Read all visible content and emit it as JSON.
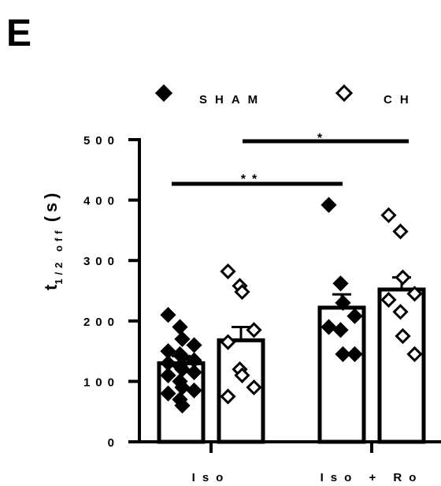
{
  "panel_label": "E",
  "legend": [
    {
      "name": "SHAM",
      "marker": "filled-diamond"
    },
    {
      "name": "CH",
      "marker": "open-diamond"
    }
  ],
  "ylabel": {
    "main": "t",
    "sub": "1/2 off",
    "unit": "(s)"
  },
  "significance": [
    {
      "label": "**",
      "groups": [
        "Iso SHAM",
        "Iso + Ro SHAM"
      ]
    },
    {
      "label": "*",
      "groups": [
        "Iso CH",
        "Iso + Ro CH"
      ]
    }
  ],
  "colors": {
    "ink": "#000000",
    "background": "#ffffff",
    "bar_fill": "#ffffff"
  },
  "chart_data": {
    "type": "bar",
    "categories": [
      "Iso",
      "Iso + Ro"
    ],
    "ylim": [
      0,
      500
    ],
    "yticks": [
      0,
      100,
      200,
      300,
      400,
      500
    ],
    "ytick_labels": [
      "0",
      "100",
      "200",
      "300",
      "400",
      "500"
    ],
    "grid": false,
    "legend_position": "top",
    "series": [
      {
        "name": "SHAM",
        "marker": "filled-diamond",
        "values": [
          130,
          222
        ],
        "errors": [
          12,
          22
        ],
        "points": [
          [
            210,
            190,
            170,
            160,
            150,
            145,
            140,
            135,
            130,
            125,
            120,
            115,
            110,
            100,
            90,
            85,
            80,
            70,
            60
          ],
          [
            392,
            262,
            230,
            208,
            190,
            185,
            145,
            145
          ]
        ]
      },
      {
        "name": "CH",
        "marker": "open-diamond",
        "values": [
          168,
          252
        ],
        "errors": [
          22,
          20
        ],
        "points": [
          [
            282,
            258,
            248,
            185,
            165,
            120,
            110,
            90,
            75
          ],
          [
            375,
            348,
            272,
            245,
            235,
            215,
            175,
            145
          ]
        ]
      }
    ]
  }
}
